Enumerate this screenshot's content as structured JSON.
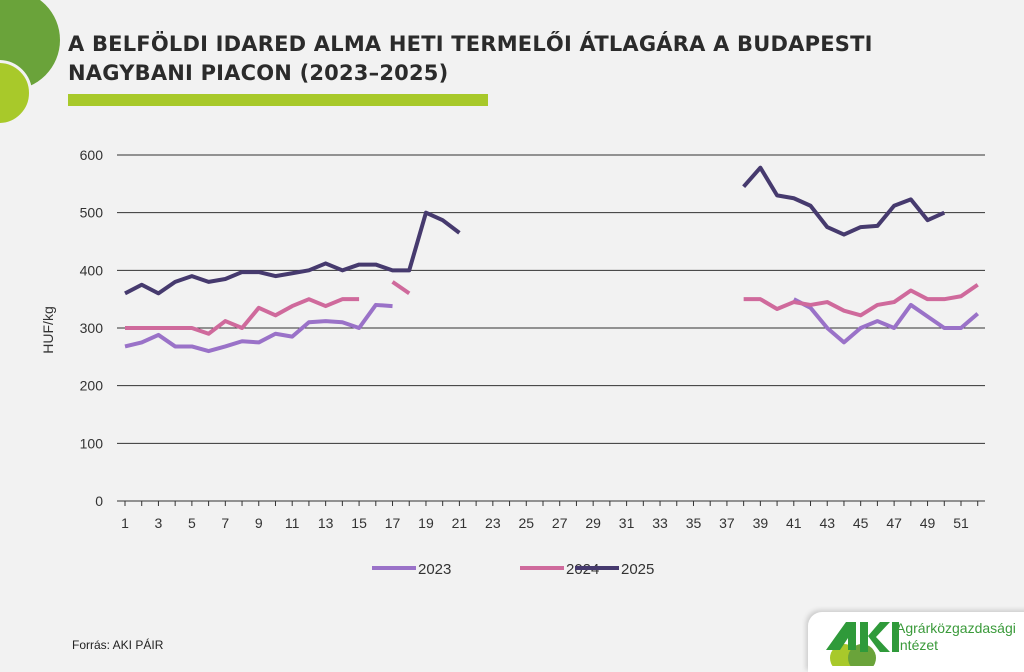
{
  "title_line1": "A BELFÖLDI IDARED ALMA HETI TERMELŐI ÁTLAGÁRA A BUDAPESTI",
  "title_line2": "NAGYBANI PIACON (2023–2025)",
  "source": "Forrás: AKI PÁIR",
  "logo": {
    "mark": "AKI",
    "line1": "Agrárközgazdasági",
    "line2": "Intézet"
  },
  "colors": {
    "2023": "#9a72c8",
    "2024": "#cf6a9c",
    "2025": "#463a6e",
    "brand_green": "#6aa33a",
    "accent_lime": "#a8c92a"
  },
  "chart_data": {
    "type": "line",
    "title": "A BELFÖLDI IDARED ALMA HETI TERMELŐI ÁTLAGÁRA A BUDAPESTI NAGYBANI PIACON (2023–2025)",
    "xlabel": "",
    "ylabel": "HUF/kg",
    "ylim": [
      0,
      600
    ],
    "yticks": [
      0,
      100,
      200,
      300,
      400,
      500,
      600
    ],
    "xlim": [
      1,
      52
    ],
    "xticks": [
      1,
      3,
      5,
      7,
      9,
      11,
      13,
      15,
      17,
      19,
      21,
      23,
      25,
      27,
      29,
      31,
      33,
      35,
      37,
      39,
      41,
      43,
      45,
      47,
      49,
      51
    ],
    "grid": "horizontal",
    "legend": "bottom",
    "series": [
      {
        "name": "2023",
        "segments": [
          {
            "start_week": 1,
            "values": [
              268,
              275,
              288,
              268,
              268,
              260,
              268,
              277,
              275,
              290,
              285,
              310,
              312,
              310,
              300,
              340,
              338
            ]
          },
          {
            "start_week": 41,
            "values": [
              350,
              335,
              300,
              275,
              300,
              312,
              300,
              340,
              320,
              300,
              300,
              325
            ]
          }
        ]
      },
      {
        "name": "2024",
        "segments": [
          {
            "start_week": 1,
            "values": [
              300,
              300,
              300,
              300,
              300,
              290,
              312,
              300,
              335,
              322,
              338,
              350,
              338,
              350,
              350
            ]
          },
          {
            "start_week": 17,
            "values": [
              380,
              360
            ]
          },
          {
            "start_week": 38,
            "values": [
              350,
              350,
              333,
              345,
              340,
              345,
              330,
              322,
              340,
              345,
              365,
              350,
              350,
              355,
              375
            ]
          }
        ]
      },
      {
        "name": "2025",
        "segments": [
          {
            "start_week": 1,
            "values": [
              360,
              375,
              360,
              380,
              390,
              380,
              385,
              397,
              397,
              390,
              395,
              400,
              412,
              400,
              410,
              410,
              400,
              400,
              500,
              487,
              465
            ]
          },
          {
            "start_week": 38,
            "values": [
              545,
              578,
              530,
              525,
              512,
              475,
              462,
              475,
              477,
              512,
              523,
              487,
              500
            ]
          }
        ]
      }
    ]
  }
}
